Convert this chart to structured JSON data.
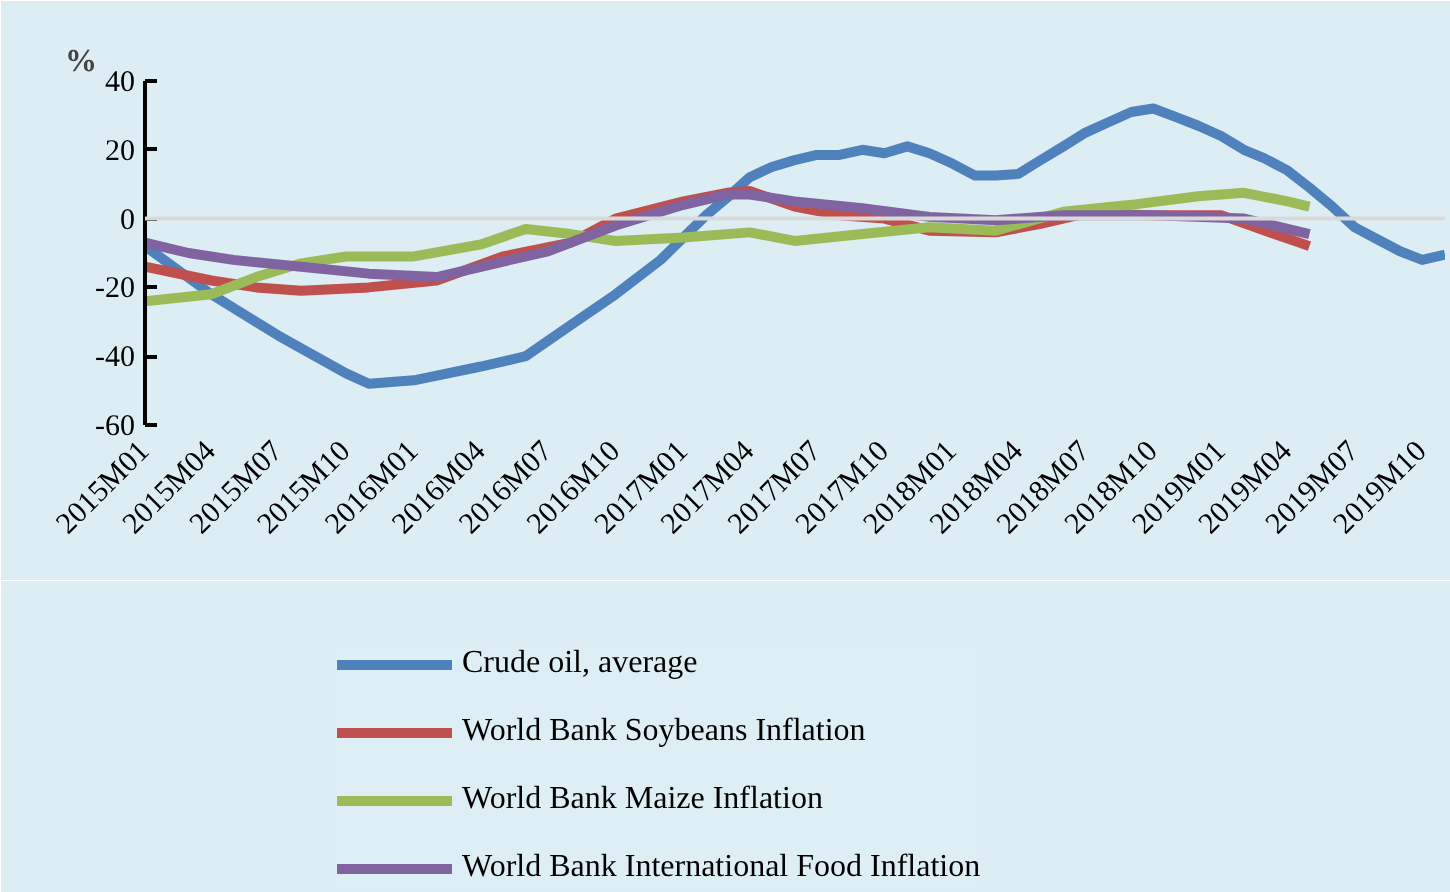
{
  "chart_data": {
    "type": "line",
    "ylabel": "%",
    "ylim": [
      -60,
      40
    ],
    "yticks": [
      -60,
      -40,
      -20,
      0,
      20,
      40
    ],
    "xlim": [
      "2015-01",
      "2019-11"
    ],
    "xticks": [
      {
        "value": "2015-01",
        "label": "2015M01"
      },
      {
        "value": "2015-04",
        "label": "2015M04"
      },
      {
        "value": "2015-07",
        "label": "2015M07"
      },
      {
        "value": "2015-10",
        "label": "2015M10"
      },
      {
        "value": "2016-01",
        "label": "2016M01"
      },
      {
        "value": "2016-04",
        "label": "2016M04"
      },
      {
        "value": "2016-07",
        "label": "2016M07"
      },
      {
        "value": "2016-10",
        "label": "2016M10"
      },
      {
        "value": "2017-01",
        "label": "2017M01"
      },
      {
        "value": "2017-04",
        "label": "2017M04"
      },
      {
        "value": "2017-07",
        "label": "2017M07"
      },
      {
        "value": "2017-10",
        "label": "2017M10"
      },
      {
        "value": "2018-01",
        "label": "2018M01"
      },
      {
        "value": "2018-04",
        "label": "2018M04"
      },
      {
        "value": "2018-07",
        "label": "2018M07"
      },
      {
        "value": "2018-10",
        "label": "2018M10"
      },
      {
        "value": "2019-01",
        "label": "2019M01"
      },
      {
        "value": "2019-04",
        "label": "2019M04"
      },
      {
        "value": "2019-07",
        "label": "2019M07"
      },
      {
        "value": "2019-10",
        "label": "2019M10"
      }
    ],
    "grid": false,
    "legend": "bottom",
    "line_style": "solid",
    "marker": "none",
    "ref_lines": [
      {
        "axis": "y",
        "value": 0,
        "color": "#d9d9d9"
      }
    ],
    "series": [
      {
        "name": "Crude oil, average",
        "color": "#4f81bd",
        "x": [
          "2015-01",
          "2015-04",
          "2015-07",
          "2015-10",
          "2015-11",
          "2016-01",
          "2016-04",
          "2016-06",
          "2016-08",
          "2016-10",
          "2016-12",
          "2017-02",
          "2017-03",
          "2017-04",
          "2017-05",
          "2017-06",
          "2017-07",
          "2017-08",
          "2017-09",
          "2017-10",
          "2017-11",
          "2017-12",
          "2018-01",
          "2018-02",
          "2018-03",
          "2018-04",
          "2018-05",
          "2018-06",
          "2018-07",
          "2018-08",
          "2018-09",
          "2018-10",
          "2018-11",
          "2018-12",
          "2019-01",
          "2019-02",
          "2019-03",
          "2019-04",
          "2019-05",
          "2019-06",
          "2019-07",
          "2019-08",
          "2019-09",
          "2019-10",
          "2019-11"
        ],
        "values": [
          -8,
          -22,
          -34,
          -45,
          -48,
          -47,
          -43,
          -40,
          -31,
          -22,
          -12,
          1,
          6,
          12,
          15,
          17,
          18.5,
          18.5,
          20,
          19,
          21,
          19,
          16,
          12.5,
          12.5,
          13,
          17,
          21,
          25,
          28,
          31,
          32,
          29.5,
          27,
          24,
          20,
          17.5,
          14,
          9,
          3.5,
          -2.5,
          -6,
          -9.5,
          -12,
          -10.5
        ]
      },
      {
        "name": "World Bank Soybeans Inflation",
        "color": "#c0504d",
        "x": [
          "2015-01",
          "2015-04",
          "2015-06",
          "2015-08",
          "2015-11",
          "2016-02",
          "2016-05",
          "2016-08",
          "2016-10",
          "2017-01",
          "2017-03",
          "2017-04",
          "2017-06",
          "2017-08",
          "2017-10",
          "2017-12",
          "2018-03",
          "2018-05",
          "2018-07",
          "2018-10",
          "2019-01",
          "2019-03",
          "2019-05"
        ],
        "values": [
          -14,
          -18,
          -20,
          -21,
          -20,
          -18,
          -11,
          -7,
          0,
          5,
          7.5,
          8,
          3.5,
          1,
          0,
          -3.5,
          -4,
          -1.5,
          1.5,
          1,
          1,
          -3.5,
          -8
        ]
      },
      {
        "name": "World Bank Maize Inflation",
        "color": "#9bbb59",
        "x": [
          "2015-01",
          "2015-04",
          "2015-06",
          "2015-08",
          "2015-10",
          "2016-01",
          "2016-04",
          "2016-06",
          "2016-08",
          "2016-10",
          "2017-01",
          "2017-04",
          "2017-06",
          "2017-09",
          "2017-12",
          "2018-03",
          "2018-06",
          "2018-09",
          "2018-12",
          "2019-02",
          "2019-04",
          "2019-05"
        ],
        "values": [
          -24,
          -22,
          -17,
          -13,
          -11,
          -11,
          -7.5,
          -3,
          -4.5,
          -6.5,
          -5.5,
          -4,
          -6.5,
          -4.5,
          -2.5,
          -3.5,
          2,
          4,
          6.5,
          7.5,
          5,
          3.5
        ]
      },
      {
        "name": "World Bank International Food Inflation",
        "color": "#8064a2",
        "x": [
          "2015-01",
          "2015-03",
          "2015-05",
          "2015-08",
          "2015-11",
          "2016-02",
          "2016-04",
          "2016-07",
          "2016-10",
          "2017-01",
          "2017-03",
          "2017-04",
          "2017-06",
          "2017-09",
          "2017-12",
          "2018-03",
          "2018-06",
          "2018-10",
          "2019-02",
          "2019-05"
        ],
        "values": [
          -7,
          -10,
          -12,
          -14,
          -16,
          -17,
          -14,
          -9.5,
          -2,
          4,
          7,
          7,
          5,
          3,
          0.5,
          -0.5,
          1,
          1,
          0,
          -4.5
        ]
      }
    ]
  }
}
